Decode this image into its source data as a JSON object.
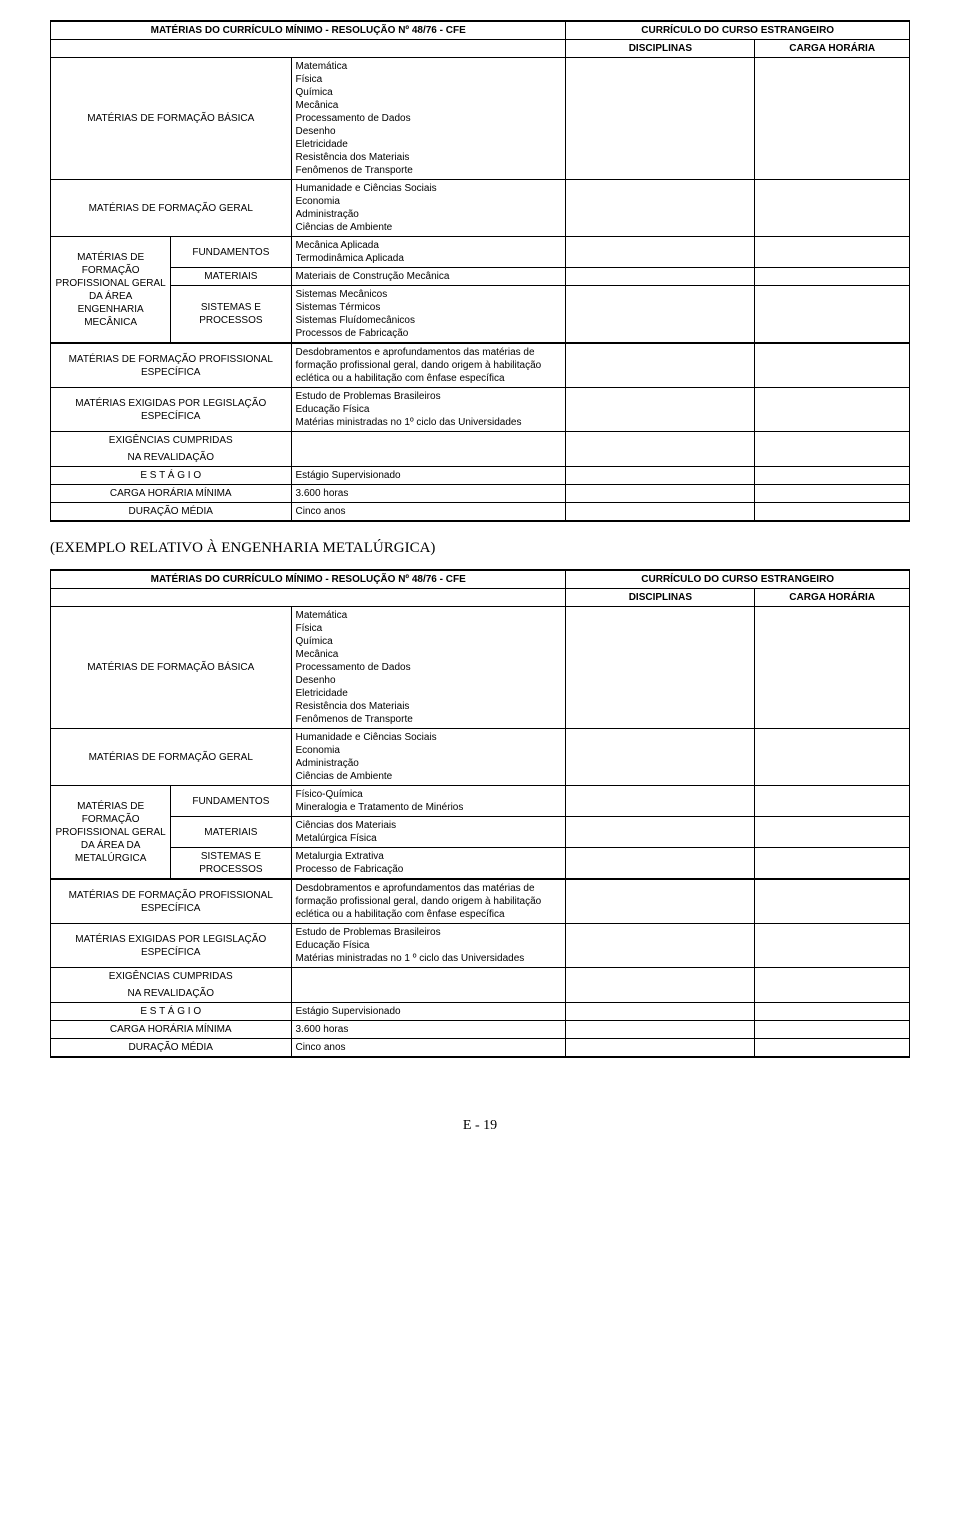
{
  "table1": {
    "header_left": "MATÉRIAS DO CURRÍCULO MÍNIMO - RESOLUÇÃO Nº 48/76 - CFE",
    "header_right": "CURRÍCULO DO CURSO ESTRANGEIRO",
    "header_disc": "DISCIPLINAS",
    "header_carga": "CARGA HORÁRIA",
    "row_basica_label": "MATÉRIAS DE FORMAÇÃO BÁSICA",
    "row_basica_content": "Matemática\nFísica\nQuímica\nMecânica\nProcessamento de Dados\nDesenho\nEletricidade\nResistência dos Materiais\nFenômenos de Transporte",
    "row_geral_label": "MATÉRIAS DE FORMAÇÃO GERAL",
    "row_geral_content": "Humanidade e Ciências Sociais\nEconomia\nAdministração\nCiências de Ambiente",
    "left_group": "MATÉRIAS DE FORMAÇÃO PROFISSIONAL GERAL DA ÁREA ENGENHARIA MECÂNICA",
    "fund_label": "FUNDAMENTOS",
    "fund_content": "Mecânica Aplicada\nTermodinâmica Aplicada",
    "mat_label": "MATERIAIS",
    "mat_content": "Materiais de Construção Mecânica",
    "sist_label": "SISTEMAS E PROCESSOS",
    "sist_content": "Sistemas Mecânicos\nSistemas Térmicos\nSistemas Fluídomecânicos\nProcessos de Fabricação",
    "prof_esp_label": "MATÉRIAS DE FORMAÇÃO PROFISSIONAL ESPECÍFICA",
    "prof_esp_content": "Desdobramentos e aprofundamentos das matérias de formação profissional geral, dando origem à habilitação eclética ou a habilitação com ênfase específica",
    "exig_label": "MATÉRIAS EXIGIDAS POR LEGISLAÇÃO ESPECÍFICA",
    "exig_content": "Estudo de Problemas Brasileiros\nEducação Física\nMatérias ministradas no 1º ciclo das Universidades",
    "exig_cump_label": "EXIGÊNCIAS CUMPRIDAS",
    "reval_label": "NA REVALIDAÇÃO",
    "estagio_label": "E S T Á G I O",
    "estagio_content": "Estágio Supervisionado",
    "carga_label": "CARGA HORÁRIA MÍNIMA",
    "carga_content": "3.600 horas",
    "dur_label": "DURAÇÃO MÉDIA",
    "dur_content": "Cinco anos"
  },
  "section_title": "(EXEMPLO RELATIVO À ENGENHARIA METALÚRGICA)",
  "table2": {
    "header_left": "MATÉRIAS DO CURRÍCULO MÍNIMO - RESOLUÇÃO Nº 48/76 - CFE",
    "header_right": "CURRÍCULO DO CURSO ESTRANGEIRO",
    "header_disc": "DISCIPLINAS",
    "header_carga": "CARGA HORÁRIA",
    "row_basica_label": "MATÉRIAS DE FORMAÇÃO BÁSICA",
    "row_basica_content": "Matemática\nFísica\nQuímica\nMecânica\nProcessamento de Dados\nDesenho\nEletricidade\nResistência dos Materiais\nFenômenos de Transporte",
    "row_geral_label": "MATÉRIAS DE FORMAÇÃO GERAL",
    "row_geral_content": "Humanidade e Ciências Sociais\nEconomia\nAdministração\nCiências de Ambiente",
    "left_group": "MATÉRIAS DE FORMAÇÃO PROFISSIONAL GERAL DA ÁREA DA METALÚRGICA",
    "fund_label": "FUNDAMENTOS",
    "fund_content": "Físico-Química\nMineralogia e Tratamento de Minérios",
    "mat_label": "MATERIAIS",
    "mat_content": "Ciências dos Materiais\nMetalúrgica Física",
    "sist_label": "SISTEMAS E PROCESSOS",
    "sist_content": "Metalurgia Extrativa\nProcesso de Fabricação",
    "prof_esp_label": "MATÉRIAS DE FORMAÇÃO PROFISSIONAL ESPECÍFICA",
    "prof_esp_content": "Desdobramentos e aprofundamentos das matérias de formação profissional geral, dando origem à habilitação eclética ou a habilitação com ênfase específica",
    "exig_label": "MATÉRIAS EXIGIDAS POR LEGISLAÇÃO ESPECÍFICA",
    "exig_content": "Estudo de Problemas Brasileiros\nEducação Física\nMatérias ministradas no 1 º ciclo das Universidades",
    "exig_cump_label": "EXIGÊNCIAS CUMPRIDAS",
    "reval_label": "NA REVALIDAÇÃO",
    "estagio_label": "E S T Á G I O",
    "estagio_content": "Estágio Supervisionado",
    "carga_label": "CARGA HORÁRIA MÍNIMA",
    "carga_content": "3.600 horas",
    "dur_label": "DURAÇÃO MÉDIA",
    "dur_content": "Cinco anos"
  },
  "page_num": "E - 19"
}
